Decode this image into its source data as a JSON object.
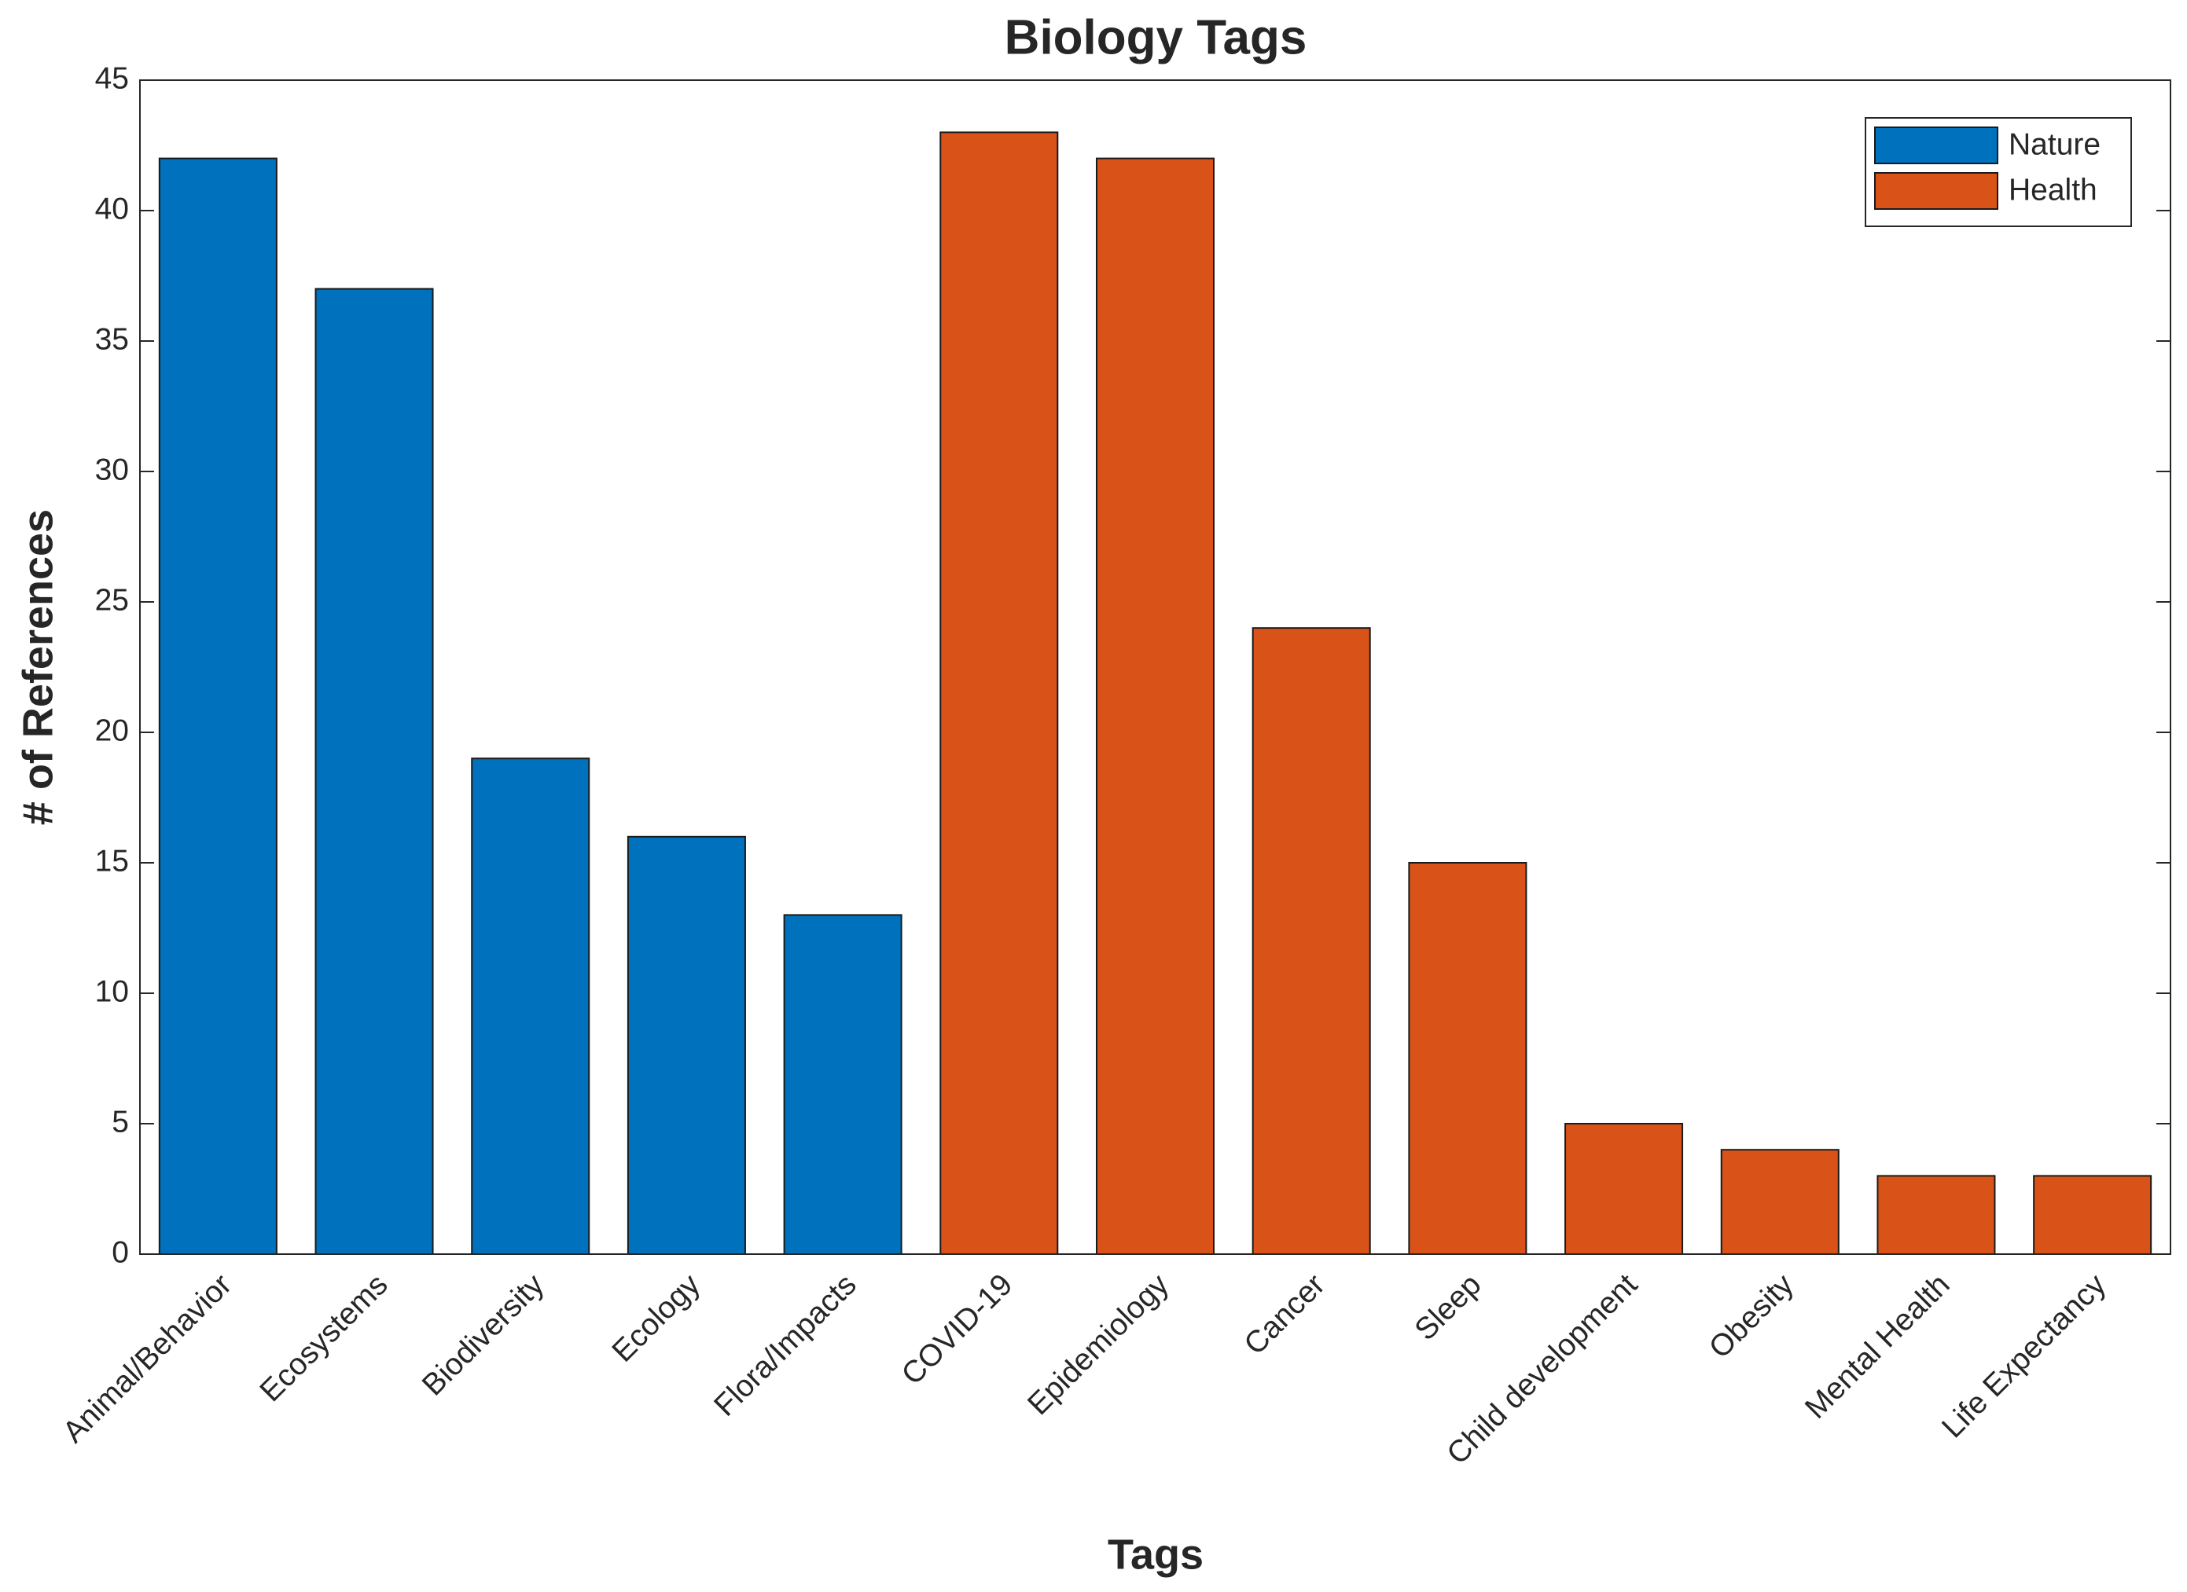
{
  "chart_data": {
    "type": "bar",
    "title": "Biology Tags",
    "x_label": "Tags",
    "y_label": "# of References",
    "categories": [
      "Animal/Behavior",
      "Ecosystems",
      "Biodiversity",
      "Ecology",
      "Flora/Impacts",
      "COVID-19",
      "Epidemiology",
      "Cancer",
      "Sleep",
      "Child development",
      "Obesity",
      "Mental Health",
      "Life Expectancy"
    ],
    "series": [
      {
        "name": "Nature",
        "color": "#0072bd",
        "values": [
          42,
          37,
          19,
          16,
          13,
          null,
          null,
          null,
          null,
          null,
          null,
          null,
          null
        ]
      },
      {
        "name": "Health",
        "color": "#d95319",
        "values": [
          null,
          null,
          null,
          null,
          null,
          43,
          42,
          24,
          15,
          5,
          4,
          3,
          3
        ]
      }
    ],
    "ylim": [
      0,
      45
    ],
    "yticks": [
      0,
      5,
      10,
      15,
      20,
      25,
      30,
      35,
      40,
      45
    ],
    "grid": false,
    "legend": "upper right"
  }
}
